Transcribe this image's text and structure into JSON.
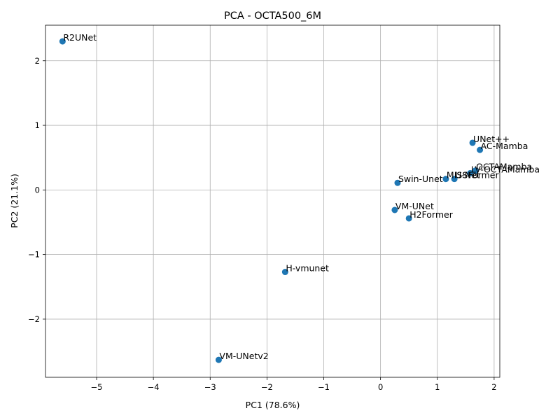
{
  "chart_data": {
    "type": "scatter",
    "title": "PCA - OCTA500_6M",
    "xlabel": "PC1 (78.6%)",
    "ylabel": "PC2 (21.1%)",
    "xlim": [
      -5.9,
      2.1
    ],
    "ylim": [
      -2.9,
      2.55
    ],
    "xticks": [
      -5,
      -4,
      -3,
      -2,
      -1,
      0,
      1,
      2
    ],
    "yticks": [
      -2,
      -1,
      0,
      1,
      2
    ],
    "grid": true,
    "marker_color": "#1f77b4",
    "points": [
      {
        "label": "R2UNet",
        "x": -5.6,
        "y": 2.3
      },
      {
        "label": "UNet++",
        "x": 1.62,
        "y": 0.73
      },
      {
        "label": "AC-Mamba",
        "x": 1.75,
        "y": 0.62
      },
      {
        "label": "OCTAMamba",
        "x": 1.67,
        "y": 0.3
      },
      {
        "label": "LV-OCTAMamba",
        "x": 1.58,
        "y": 0.26
      },
      {
        "label": "MISSFormer",
        "x": 1.15,
        "y": 0.17
      },
      {
        "label": "U-Net",
        "x": 1.3,
        "y": 0.17
      },
      {
        "label": "Swin-Unet",
        "x": 0.3,
        "y": 0.11
      },
      {
        "label": "VM-UNet",
        "x": 0.25,
        "y": -0.31
      },
      {
        "label": "H2Former",
        "x": 0.5,
        "y": -0.44
      },
      {
        "label": "H-vmunet",
        "x": -1.68,
        "y": -1.27
      },
      {
        "label": "VM-UNetv2",
        "x": -2.85,
        "y": -2.63
      }
    ]
  }
}
